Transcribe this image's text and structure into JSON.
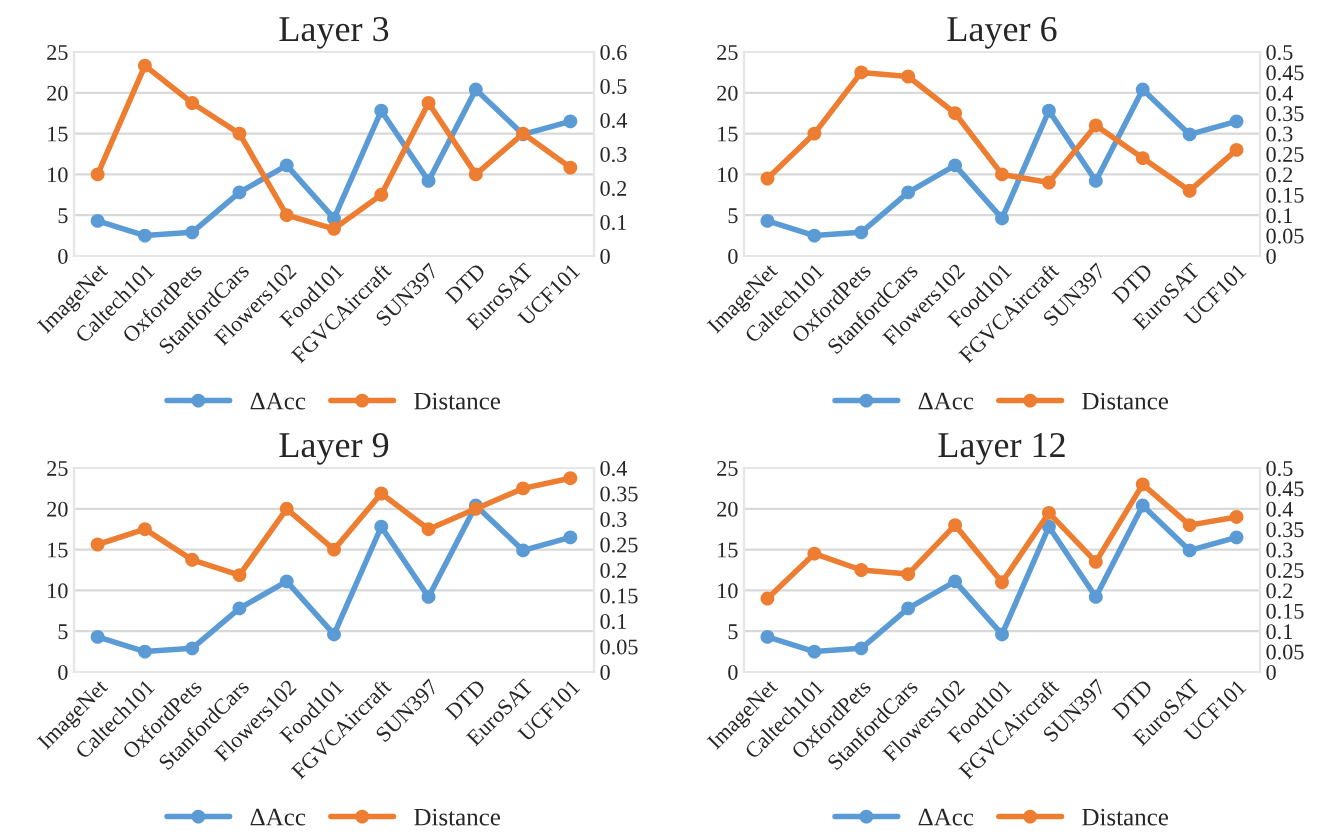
{
  "chart_data": [
    {
      "type": "line",
      "title": "Layer 3",
      "categories": [
        "ImageNet",
        "Caltech101",
        "OxfordPets",
        "StanfordCars",
        "Flowers102",
        "Food101",
        "FGVCAircraft",
        "SUN397",
        "DTD",
        "EuroSAT",
        "UCF101"
      ],
      "series": [
        {
          "name": "ΔAcc",
          "color": "#5b9bd5",
          "values": [
            4.3,
            2.5,
            2.9,
            7.8,
            11.1,
            4.6,
            17.8,
            9.2,
            20.4,
            14.9,
            16.5
          ]
        },
        {
          "name": "Distance",
          "color": "#ed7d31",
          "axis": "y2",
          "values": [
            0.24,
            0.56,
            0.45,
            0.36,
            0.12,
            0.08,
            0.18,
            0.45,
            0.24,
            0.36,
            0.26
          ]
        }
      ],
      "ylim": [
        0,
        25
      ],
      "yticks": [
        0,
        5,
        10,
        15,
        20,
        25
      ],
      "y2lim": [
        0,
        0.6
      ],
      "y2ticks": [
        0,
        0.1,
        0.2,
        0.3,
        0.4,
        0.5,
        0.6
      ],
      "grid": "y",
      "legend": "bottom",
      "marker": "circle",
      "line_style": "solid"
    },
    {
      "type": "line",
      "title": "Layer 6",
      "categories": [
        "ImageNet",
        "Caltech101",
        "OxfordPets",
        "StanfordCars",
        "Flowers102",
        "Food101",
        "FGVCAircraft",
        "SUN397",
        "DTD",
        "EuroSAT",
        "UCF101"
      ],
      "series": [
        {
          "name": "ΔAcc",
          "color": "#5b9bd5",
          "values": [
            4.3,
            2.5,
            2.9,
            7.8,
            11.1,
            4.6,
            17.8,
            9.2,
            20.4,
            14.9,
            16.5
          ]
        },
        {
          "name": "Distance",
          "color": "#ed7d31",
          "axis": "y2",
          "values": [
            0.19,
            0.3,
            0.45,
            0.44,
            0.35,
            0.2,
            0.18,
            0.32,
            0.24,
            0.16,
            0.26
          ]
        }
      ],
      "ylim": [
        0,
        25
      ],
      "yticks": [
        0,
        5,
        10,
        15,
        20,
        25
      ],
      "y2lim": [
        0,
        0.5
      ],
      "y2ticks": [
        0,
        0.05,
        0.1,
        0.15,
        0.2,
        0.25,
        0.3,
        0.35,
        0.4,
        0.45,
        0.5
      ],
      "grid": "y",
      "legend": "bottom",
      "marker": "circle",
      "line_style": "solid"
    },
    {
      "type": "line",
      "title": "Layer 9",
      "categories": [
        "ImageNet",
        "Caltech101",
        "OxfordPets",
        "StanfordCars",
        "Flowers102",
        "Food101",
        "FGVCAircraft",
        "SUN397",
        "DTD",
        "EuroSAT",
        "UCF101"
      ],
      "series": [
        {
          "name": "ΔAcc",
          "color": "#5b9bd5",
          "values": [
            4.3,
            2.5,
            2.9,
            7.8,
            11.1,
            4.6,
            17.8,
            9.2,
            20.4,
            14.9,
            16.5
          ]
        },
        {
          "name": "Distance",
          "color": "#ed7d31",
          "axis": "y2",
          "values": [
            0.25,
            0.28,
            0.22,
            0.19,
            0.32,
            0.24,
            0.35,
            0.28,
            0.32,
            0.36,
            0.38
          ]
        }
      ],
      "ylim": [
        0,
        25
      ],
      "yticks": [
        0,
        5,
        10,
        15,
        20,
        25
      ],
      "y2lim": [
        0,
        0.4
      ],
      "y2ticks": [
        0,
        0.05,
        0.1,
        0.15,
        0.2,
        0.25,
        0.3,
        0.35,
        0.4
      ],
      "grid": "y",
      "legend": "bottom",
      "marker": "circle",
      "line_style": "solid"
    },
    {
      "type": "line",
      "title": "Layer 12",
      "categories": [
        "ImageNet",
        "Caltech101",
        "OxfordPets",
        "StanfordCars",
        "Flowers102",
        "Food101",
        "FGVCAircraft",
        "SUN397",
        "DTD",
        "EuroSAT",
        "UCF101"
      ],
      "series": [
        {
          "name": "ΔAcc",
          "color": "#5b9bd5",
          "values": [
            4.3,
            2.5,
            2.9,
            7.8,
            11.1,
            4.6,
            17.8,
            9.2,
            20.4,
            14.9,
            16.5
          ]
        },
        {
          "name": "Distance",
          "color": "#ed7d31",
          "axis": "y2",
          "values": [
            0.18,
            0.29,
            0.25,
            0.24,
            0.36,
            0.22,
            0.39,
            0.27,
            0.46,
            0.36,
            0.38
          ]
        }
      ],
      "ylim": [
        0,
        25
      ],
      "yticks": [
        0,
        5,
        10,
        15,
        20,
        25
      ],
      "y2lim": [
        0,
        0.5
      ],
      "y2ticks": [
        0,
        0.05,
        0.1,
        0.15,
        0.2,
        0.25,
        0.3,
        0.35,
        0.4,
        0.45,
        0.5
      ],
      "grid": "y",
      "legend": "bottom",
      "marker": "circle",
      "line_style": "solid"
    }
  ]
}
